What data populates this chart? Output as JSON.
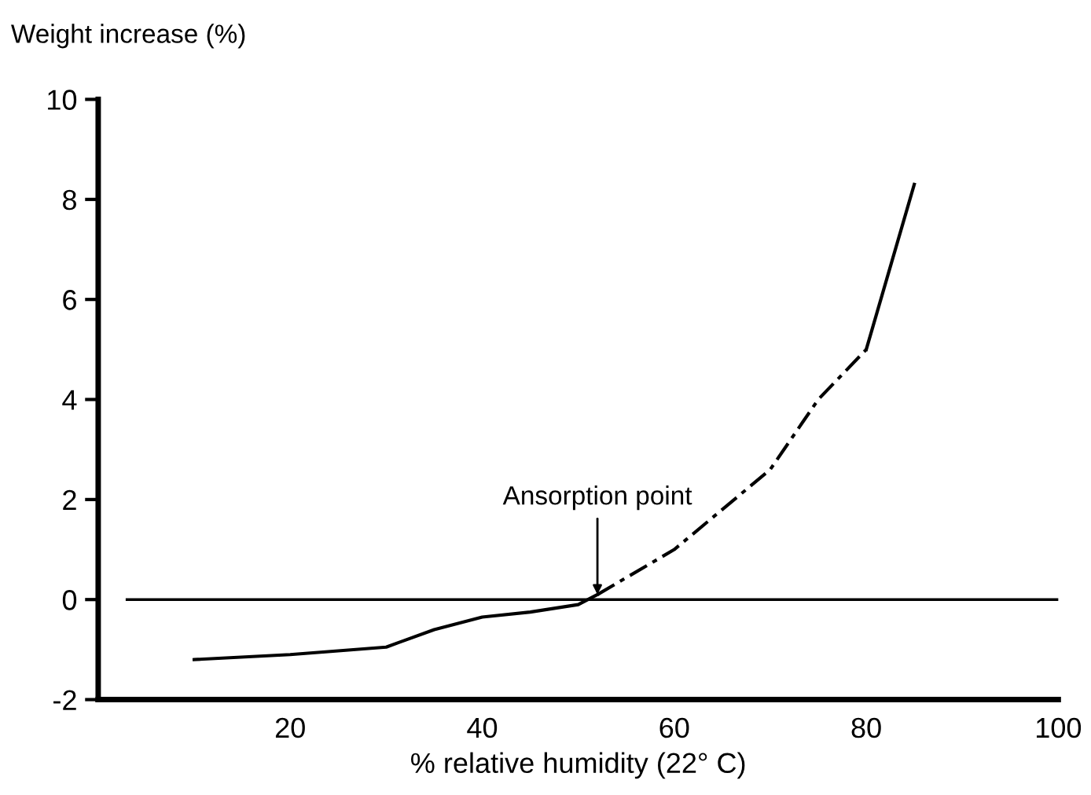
{
  "chart_data": {
    "type": "line",
    "xlabel": "% relative humidity (22° C)",
    "ylabel": "Weight increase (%)",
    "series": [
      {
        "color": "#000000",
        "line_style": "solid",
        "x": [
          10,
          20,
          30,
          35,
          40,
          45,
          50,
          52
        ],
        "values": [
          -1.2,
          -1.1,
          -0.95,
          -0.6,
          -0.35,
          -0.25,
          -0.1,
          0.1
        ]
      },
      {
        "color": "#000000",
        "line_style": "dashed",
        "x": [
          52,
          60,
          70,
          75,
          80
        ],
        "values": [
          0.1,
          1.0,
          2.6,
          4.0,
          5.0
        ]
      },
      {
        "color": "#000000",
        "line_style": "solid",
        "x": [
          80,
          85
        ],
        "values": [
          5.0,
          8.3
        ]
      }
    ],
    "annotations": [
      {
        "text": "Ansorption point",
        "x": 52,
        "y": 0.1
      }
    ],
    "ref_lines": [
      {
        "axis": "y",
        "value": 0,
        "color": "#000000"
      }
    ],
    "xlim": [
      0,
      100
    ],
    "xticks": [
      20,
      40,
      60,
      80,
      100
    ],
    "ylim": [
      -2,
      10
    ],
    "yticks": [
      -2,
      0,
      2,
      4,
      6,
      8,
      10
    ],
    "grid": false
  }
}
